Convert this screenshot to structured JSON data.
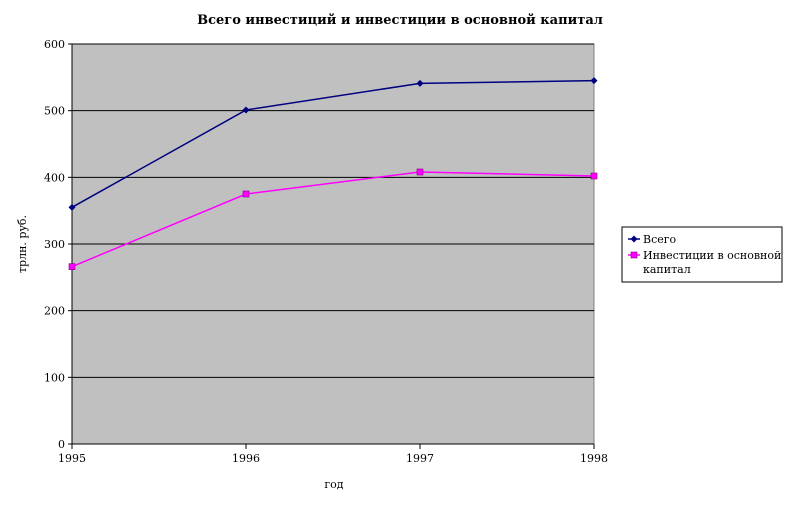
{
  "chart_data": {
    "type": "line",
    "title": "Всего инвестиций и инвестиции в основной капитал",
    "xlabel": "год",
    "ylabel": "трлн. руб.",
    "x": [
      "1995",
      "1996",
      "1997",
      "1998"
    ],
    "ylim": [
      0,
      600
    ],
    "yticks": [
      "0",
      "100",
      "200",
      "300",
      "400",
      "500",
      "600"
    ],
    "grid": true,
    "legend_position": "right",
    "series": [
      {
        "name": "Всего",
        "values": [
          355,
          501,
          541,
          545
        ],
        "color": "#000080",
        "marker": "diamond"
      },
      {
        "name": "Инвестиции в основной капитал",
        "values": [
          266,
          375,
          408,
          402
        ],
        "color": "#ff00ff",
        "marker": "square"
      }
    ],
    "plot_background": "#c0c0c0"
  }
}
